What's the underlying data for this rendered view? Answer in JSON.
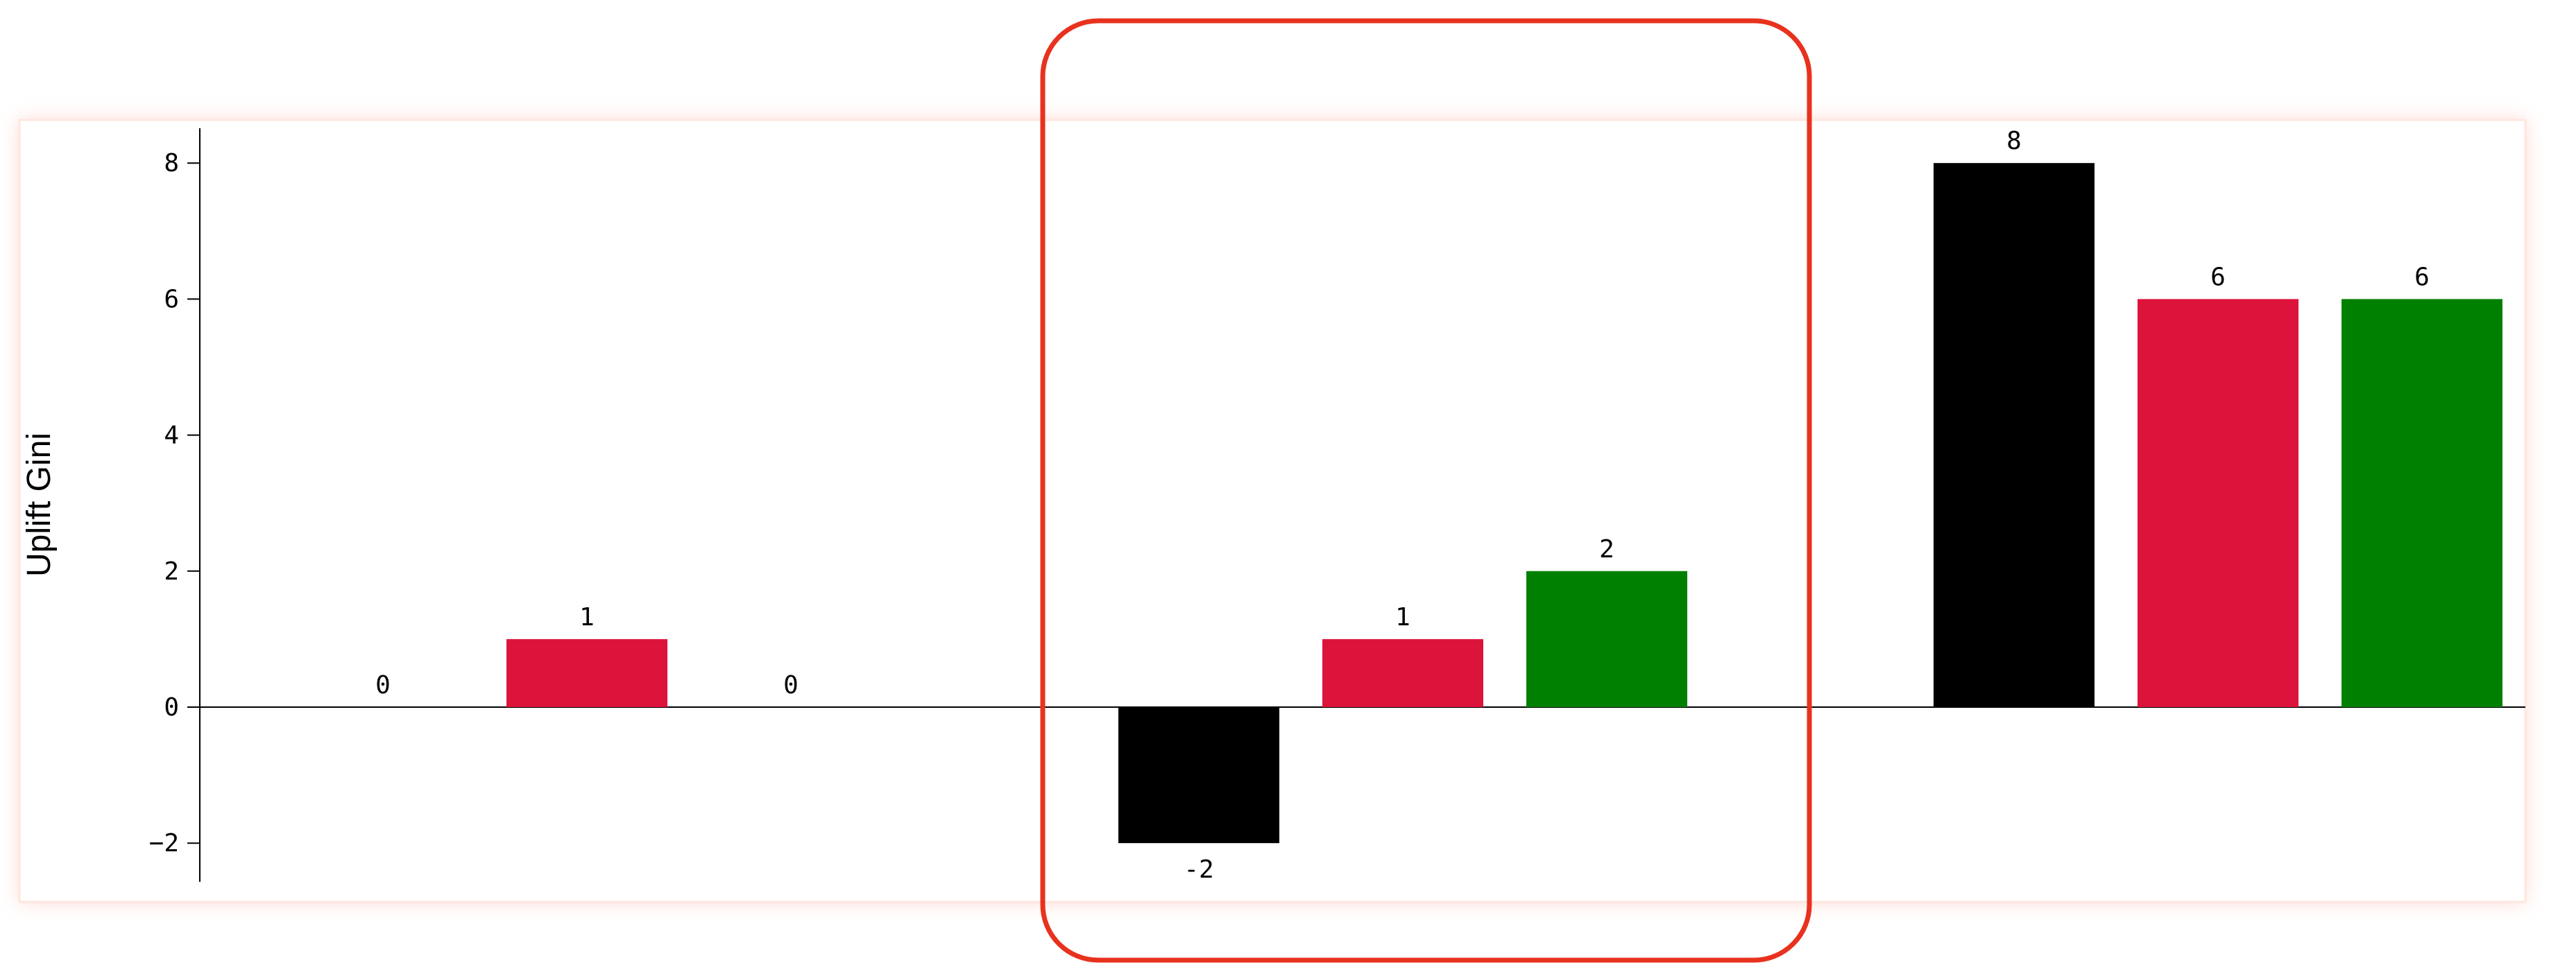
{
  "chart_data": {
    "type": "bar",
    "ylabel": "Uplift Gini",
    "xlabel": "",
    "title": "",
    "ylim": [
      -2.5,
      8.5
    ],
    "yticks": [
      -2,
      0,
      2,
      4,
      6,
      8
    ],
    "ytick_labels": [
      "−2",
      "0",
      "2",
      "4",
      "6",
      "8"
    ],
    "groups": 3,
    "series": [
      {
        "color": "#000000",
        "values": [
          0,
          -2,
          8
        ]
      },
      {
        "color": "#dc143c",
        "values": [
          1,
          1,
          6
        ]
      },
      {
        "color": "#008000",
        "values": [
          0,
          2,
          6
        ]
      }
    ],
    "data_labels": [
      [
        "0",
        "-2",
        "8"
      ],
      [
        "1",
        "1",
        "6"
      ],
      [
        "0",
        "2",
        "6"
      ]
    ],
    "highlight_group": 1,
    "highlight_color": "#e8321e",
    "panel_glow_color": "#ffd9d0",
    "grid": false
  }
}
